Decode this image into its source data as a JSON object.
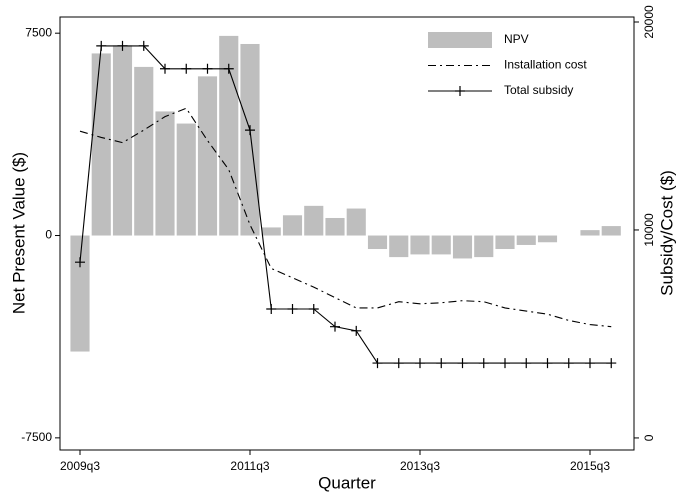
{
  "chart_data": {
    "type": "combo",
    "x_label": "Quarter",
    "y_label": "Net Present Value ($)",
    "y2_label": "Subsidy/Cost ($)",
    "categories": [
      "2009q3",
      null,
      null,
      null,
      null,
      null,
      null,
      null,
      "2011q3",
      null,
      null,
      null,
      null,
      null,
      null,
      null,
      "2013q3",
      null,
      null,
      null,
      null,
      null,
      null,
      null,
      "2015q3",
      null
    ],
    "ylim": [
      -7950,
      8100
    ],
    "yticks": [
      -7500,
      0,
      7500
    ],
    "y2lim": [
      -580,
      20240
    ],
    "y2ticks": [
      0,
      10000,
      20000
    ],
    "grid": false,
    "legend": "top-right",
    "series": [
      {
        "name": "NPV",
        "type": "bar",
        "color": "#bebebe",
        "values": [
          -4300,
          6750,
          7050,
          6250,
          4600,
          4150,
          5900,
          7400,
          7100,
          300,
          750,
          1100,
          650,
          1000,
          -500,
          -800,
          -700,
          -700,
          -850,
          -800,
          -500,
          -350,
          -250,
          0,
          200,
          350
        ]
      },
      {
        "name": "Installation cost",
        "type": "line",
        "axis": "y2",
        "color": "#000000",
        "dash": "dash-dot",
        "values": [
          14750,
          14450,
          14200,
          14800,
          15450,
          15850,
          14300,
          12900,
          10250,
          8150,
          7700,
          7250,
          6750,
          6250,
          6250,
          6550,
          6450,
          6500,
          6600,
          6550,
          6250,
          6100,
          5950,
          5650,
          5450,
          5350
        ]
      },
      {
        "name": "Total subsidy",
        "type": "line",
        "axis": "y2",
        "color": "#000000",
        "marker": "plus",
        "values": [
          8450,
          18850,
          18850,
          18850,
          17750,
          17750,
          17750,
          17750,
          14800,
          6200,
          6200,
          6200,
          5350,
          5150,
          3600,
          3600,
          3600,
          3600,
          3600,
          3600,
          3600,
          3600,
          3600,
          3600,
          3600,
          3600
        ]
      }
    ]
  }
}
